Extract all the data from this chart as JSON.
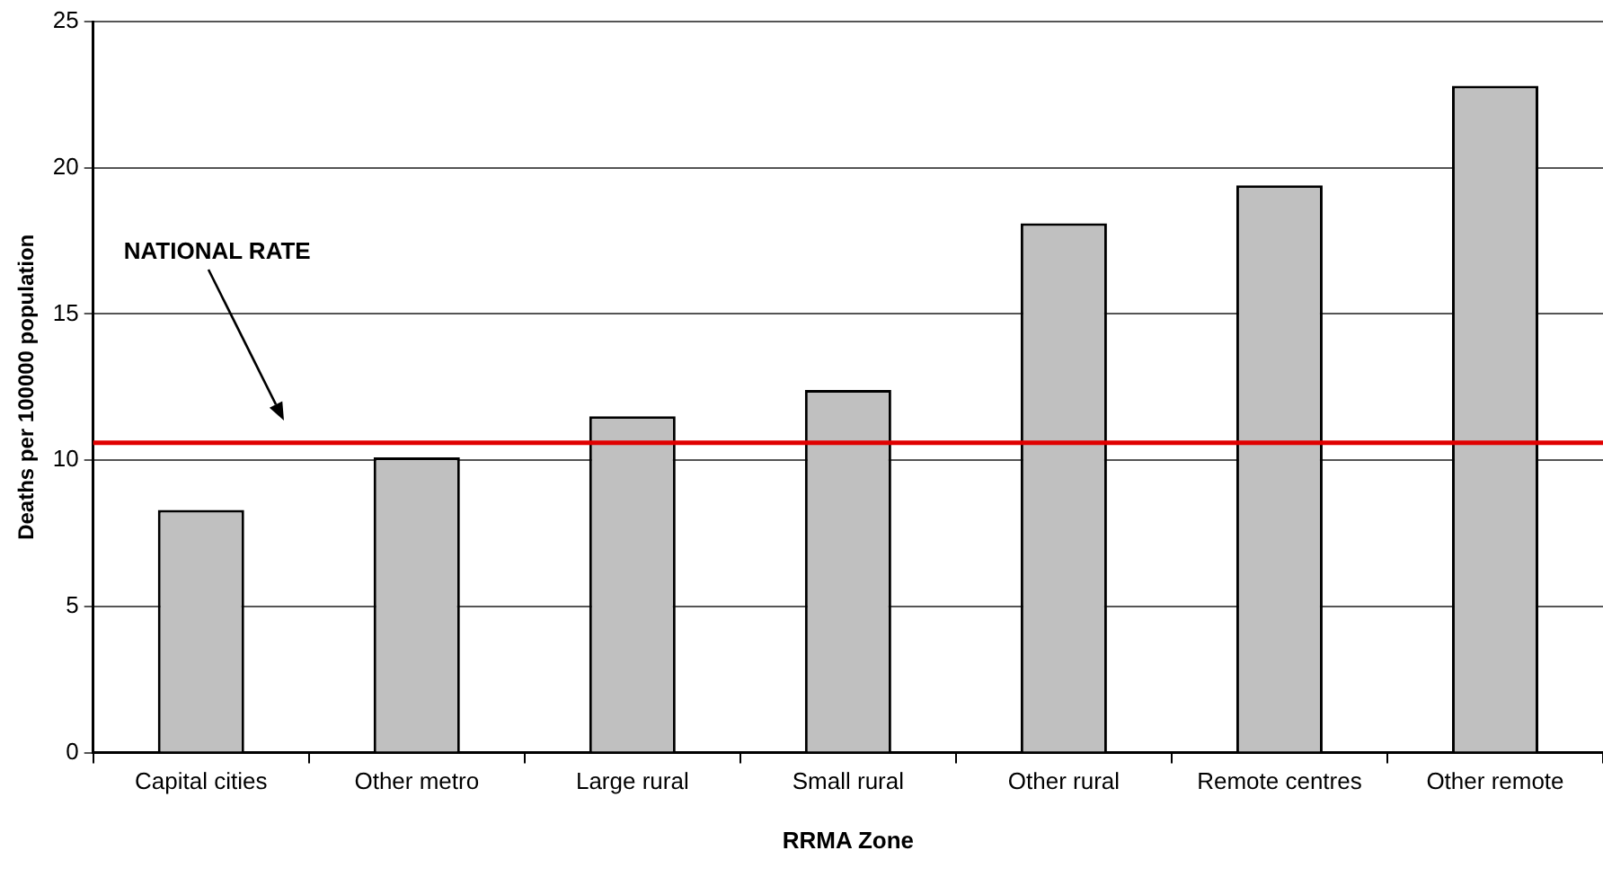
{
  "chart_data": {
    "type": "bar",
    "xlabel": "RRMA Zone",
    "ylabel": "Deaths per 100000 population",
    "categories": [
      "Capital cities",
      "Other metro",
      "Large rural",
      "Small rural",
      "Other rural",
      "Remote centres",
      "Other remote"
    ],
    "values": [
      8.3,
      10.1,
      11.5,
      12.4,
      18.1,
      19.4,
      22.8
    ],
    "color": "#c0c0c0",
    "ylim": [
      0,
      25
    ],
    "yticks": [
      0,
      5,
      10,
      15,
      20,
      25
    ],
    "grid": "y",
    "legend": false,
    "ref_lines": [
      {
        "axis": "y",
        "value": 10.6,
        "color": "#e00000"
      }
    ],
    "annotations": [
      "NATIONAL RATE"
    ]
  }
}
